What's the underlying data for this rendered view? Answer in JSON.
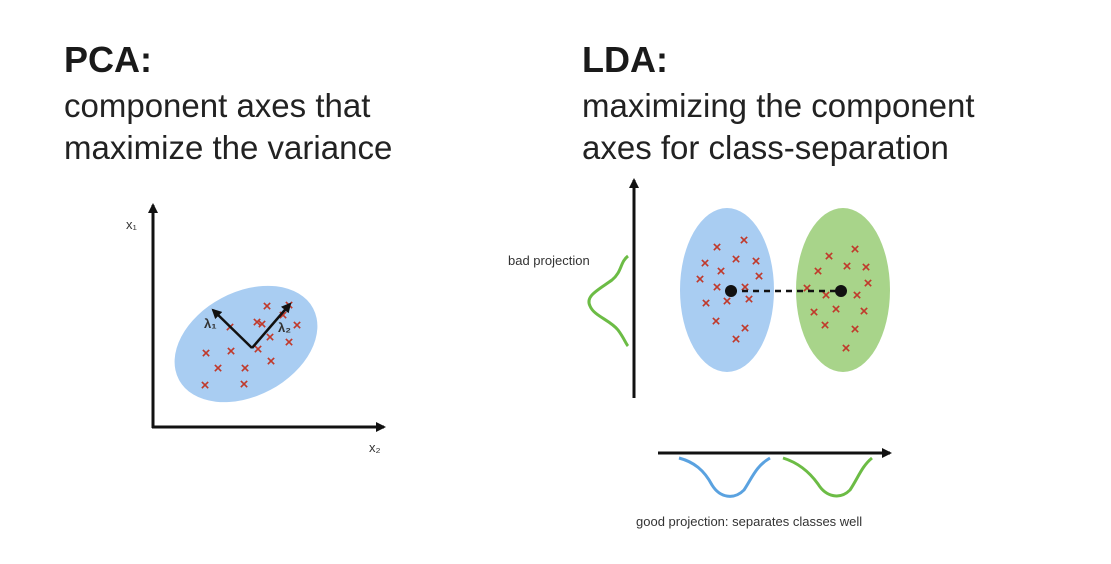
{
  "pca": {
    "title": "PCA:",
    "description_line1": "component axes that",
    "description_line2": "maximize the variance",
    "axis_y_label": "x₁",
    "axis_x_label": "x₂",
    "vector1_label": "λ₁",
    "vector2_label": "λ₂",
    "marker_symbol": "×"
  },
  "lda": {
    "title": "LDA:",
    "description_line1": "maximizing the component",
    "description_line2": "axes for class-separation",
    "bad_projection_label": "bad projection",
    "good_projection_label": "good projection: separates classes well",
    "marker_symbol": "×"
  },
  "colors": {
    "blue_class_fill": "#a9cdf2",
    "green_class_fill": "#a8d48a",
    "marker": "#c0392b",
    "blue_curve": "#5aa2e0",
    "green_curve": "#6cbc45",
    "axis": "#111111"
  }
}
